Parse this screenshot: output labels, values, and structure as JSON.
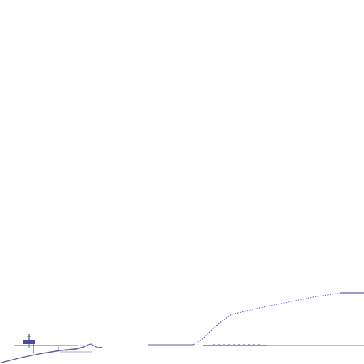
{
  "colors": {
    "background": "#ffffff",
    "outline": "#5b5bb5",
    "outline_light": "#8a8ad8",
    "water": "#5aa8e8",
    "ground": "#6a5aa0",
    "structure": "#4a4aa0"
  },
  "icons": {
    "marker": "small-tower-icon"
  }
}
